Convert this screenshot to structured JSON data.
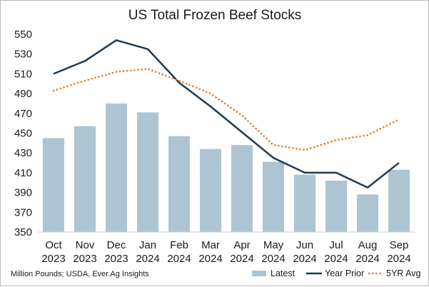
{
  "chart_data": {
    "type": "bar",
    "title": "US Total Frozen Beef Stocks",
    "xlabel": "",
    "ylabel": "",
    "ylim": [
      350,
      550
    ],
    "yticks": [
      350,
      370,
      390,
      410,
      430,
      450,
      470,
      490,
      510,
      530,
      550
    ],
    "grid": false,
    "categories": [
      [
        "Oct",
        "2023"
      ],
      [
        "Nov",
        "2023"
      ],
      [
        "Dec",
        "2023"
      ],
      [
        "Jan",
        "2024"
      ],
      [
        "Feb",
        "2024"
      ],
      [
        "Mar",
        "2024"
      ],
      [
        "Apr",
        "2024"
      ],
      [
        "May",
        "2024"
      ],
      [
        "Jun",
        "2024"
      ],
      [
        "Jul",
        "2024"
      ],
      [
        "Aug",
        "2024"
      ],
      [
        "Sep",
        "2024"
      ]
    ],
    "series": [
      {
        "name": "Latest",
        "kind": "bar",
        "color": "#adc5d2",
        "values": [
          445,
          457,
          480,
          471,
          447,
          434,
          438,
          421,
          408,
          402,
          388,
          413
        ]
      },
      {
        "name": "Year Prior",
        "kind": "line",
        "color": "#1f3a4d",
        "values": [
          510,
          523,
          544,
          535,
          501,
          477,
          451,
          425,
          410,
          410,
          395,
          420
        ]
      },
      {
        "name": "5YR Avg",
        "kind": "dotted-line",
        "color": "#e07b24",
        "values": [
          493,
          503,
          512,
          515,
          503,
          490,
          468,
          438,
          433,
          443,
          448,
          464
        ]
      }
    ],
    "legend_position": "bottom-right",
    "footnote": "Million Pounds; USDA, Ever.Ag Insights"
  }
}
